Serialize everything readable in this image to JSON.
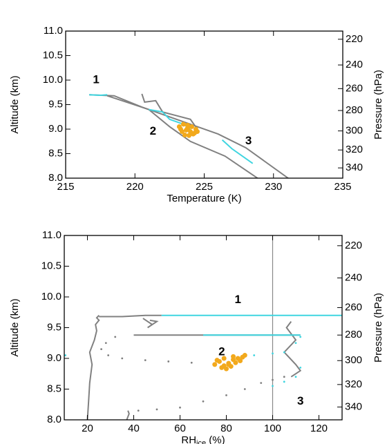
{
  "chart_data": [
    {
      "type": "line",
      "xlabel": "Temperature (K)",
      "ylabel": "Altitude (km)",
      "y2label": "Pressure (hPa)",
      "xlim": [
        215,
        235
      ],
      "xticks": [
        215,
        220,
        225,
        230,
        235
      ],
      "ylim": [
        8,
        11
      ],
      "yticks": [
        {
          "value": 8,
          "label": "8.0"
        },
        {
          "value": 8.5,
          "label": "8.5"
        },
        {
          "value": 9,
          "label": "9.0"
        },
        {
          "value": 9.5,
          "label": "9.5"
        },
        {
          "value": 10,
          "label": "10.0"
        },
        {
          "value": 10.5,
          "label": "10.5"
        },
        {
          "value": 11,
          "label": "11.0"
        }
      ],
      "y2lim": [
        352,
        214
      ],
      "y2log": true,
      "y2ticks": [
        220,
        240,
        260,
        280,
        300,
        320,
        340
      ],
      "series": [
        {
          "color": "#808080",
          "style": "line",
          "x": [
            216.7,
            218.5,
            220.5,
            223,
            226,
            228,
            231.2
          ],
          "values": [
            9.7,
            9.68,
            9.45,
            9.2,
            8.9,
            8.62,
            7.97
          ]
        },
        {
          "color": "#808080",
          "style": "line",
          "x": [
            218,
            221,
            222.5,
            224,
            226.5,
            229
          ],
          "values": [
            9.68,
            9.4,
            9.05,
            8.75,
            8.45,
            7.97
          ]
        },
        {
          "color": "#808080",
          "style": "line",
          "x": [
            220.5,
            220.7,
            221.5,
            222,
            224,
            224.5
          ],
          "values": [
            9.72,
            9.55,
            9.58,
            9.35,
            9.2,
            9.0
          ]
        },
        {
          "color": "#3fd5e0",
          "style": "line",
          "x": [
            216.7,
            217.5,
            218
          ],
          "values": [
            9.7,
            9.69,
            9.7
          ]
        },
        {
          "color": "#3fd5e0",
          "style": "line",
          "x": [
            221,
            222,
            222.5,
            223.5,
            224
          ],
          "values": [
            9.4,
            9.35,
            9.2,
            9.1,
            9.0
          ]
        },
        {
          "color": "#3fd5e0",
          "style": "line",
          "x": [
            226.3,
            227,
            228.5
          ],
          "values": [
            8.78,
            8.6,
            8.3
          ]
        },
        {
          "color": "#f2a91c",
          "style": "points",
          "x": [
            223.2,
            223.5,
            223.8,
            224.1,
            224.4,
            223.4,
            223.7,
            224.0,
            224.3,
            223.6,
            223.9,
            224.2,
            223.3,
            224.5,
            223.8
          ],
          "values": [
            9.05,
            9.1,
            9.08,
            9.05,
            9.0,
            8.95,
            8.98,
            8.95,
            8.92,
            8.88,
            8.87,
            8.9,
            9.0,
            8.95,
            9.02
          ]
        }
      ],
      "annotations": [
        {
          "text": "1",
          "x": 217.2,
          "y": 10.0
        },
        {
          "text": "2",
          "x": 221.3,
          "y": 8.95
        },
        {
          "text": "3",
          "x": 228.2,
          "y": 8.75
        }
      ]
    },
    {
      "type": "line",
      "xlabel": {
        "main": "RH",
        "sub": "ice",
        "rest": " (%)"
      },
      "ylabel": "Altitude (km)",
      "y2label": "Pressure (hPa)",
      "xlim": [
        10,
        130
      ],
      "xticks": [
        20,
        40,
        60,
        80,
        100,
        120
      ],
      "ylim": [
        8,
        11
      ],
      "yticks": [
        {
          "value": 8,
          "label": "8.0"
        },
        {
          "value": 8.5,
          "label": "8.5"
        },
        {
          "value": 9,
          "label": "9.0"
        },
        {
          "value": 9.5,
          "label": "9.5"
        },
        {
          "value": 10,
          "label": "10.0"
        },
        {
          "value": 10.5,
          "label": "10.5"
        },
        {
          "value": 11,
          "label": "11.0"
        }
      ],
      "y2lim": [
        352,
        214
      ],
      "y2log": true,
      "y2ticks": [
        220,
        240,
        260,
        280,
        300,
        320,
        340
      ],
      "vline": 100,
      "series": [
        {
          "color": "#808080",
          "style": "line",
          "x": [
            20,
            20.5,
            21,
            22,
            21,
            23,
            24,
            23.5,
            25,
            24,
            25
          ],
          "values": [
            8.0,
            8.3,
            8.6,
            8.9,
            9.1,
            9.3,
            9.45,
            9.55,
            9.62,
            9.66,
            9.7
          ]
        },
        {
          "color": "#808080",
          "style": "line",
          "x": [
            25,
            35,
            45,
            52
          ],
          "values": [
            9.68,
            9.68,
            9.7,
            9.7
          ]
        },
        {
          "color": "#808080",
          "style": "line",
          "x": [
            44,
            48,
            46,
            50,
            47
          ],
          "values": [
            9.65,
            9.55,
            9.5,
            9.6,
            9.62
          ]
        },
        {
          "color": "#808080",
          "style": "line",
          "x": [
            40,
            112
          ],
          "values": [
            9.38,
            9.38
          ]
        },
        {
          "color": "#808080",
          "style": "line",
          "x": [
            37,
            38,
            37.5
          ],
          "values": [
            8.0,
            8.1,
            8.15
          ]
        },
        {
          "color": "#808080",
          "style": "dots",
          "x": [
            42,
            50,
            60,
            70,
            80,
            88,
            95,
            100,
            105
          ],
          "values": [
            8.15,
            8.17,
            8.2,
            8.3,
            8.4,
            8.5,
            8.6,
            8.65,
            8.7
          ]
        },
        {
          "color": "#808080",
          "style": "dots",
          "x": [
            32,
            28,
            26,
            29,
            35,
            45,
            55,
            65,
            75
          ],
          "values": [
            9.35,
            9.25,
            9.15,
            9.05,
            9.0,
            8.97,
            8.95,
            8.93,
            8.92
          ]
        },
        {
          "color": "#808080",
          "style": "line",
          "x": [
            108,
            106,
            110,
            105,
            110,
            112,
            108
          ],
          "values": [
            9.6,
            9.5,
            9.3,
            9.1,
            8.9,
            8.8,
            8.7
          ]
        },
        {
          "color": "#3fd5e0",
          "style": "line",
          "x": [
            52,
            90,
            130
          ],
          "values": [
            9.7,
            9.7,
            9.7
          ]
        },
        {
          "color": "#3fd5e0",
          "style": "line",
          "x": [
            70,
            112
          ],
          "values": [
            9.38,
            9.38
          ]
        },
        {
          "color": "#3fd5e0",
          "style": "dots",
          "x": [
            85,
            92,
            100,
            105,
            110,
            112
          ],
          "values": [
            9.0,
            9.05,
            9.08,
            9.1,
            9.25,
            9.35
          ]
        },
        {
          "color": "#3fd5e0",
          "style": "dots",
          "x": [
            100,
            105,
            110,
            112,
            10.5
          ],
          "values": [
            8.55,
            8.62,
            8.7,
            8.85,
            9.05
          ]
        },
        {
          "color": "#f2a91c",
          "style": "points",
          "x": [
            75,
            77,
            79,
            81,
            83,
            85,
            87,
            78,
            80,
            82,
            84,
            86,
            76,
            79,
            83,
            88,
            81
          ],
          "values": [
            8.9,
            8.95,
            8.88,
            8.92,
            8.98,
            9.0,
            9.02,
            8.85,
            8.83,
            8.87,
            8.93,
            8.96,
            8.97,
            9.0,
            9.03,
            9.05,
            8.9
          ]
        }
      ],
      "annotations": [
        {
          "text": "1",
          "x": 85,
          "y": 9.95
        },
        {
          "text": "2",
          "x": 78,
          "y": 9.1
        },
        {
          "text": "3",
          "x": 112,
          "y": 8.3
        }
      ]
    }
  ]
}
